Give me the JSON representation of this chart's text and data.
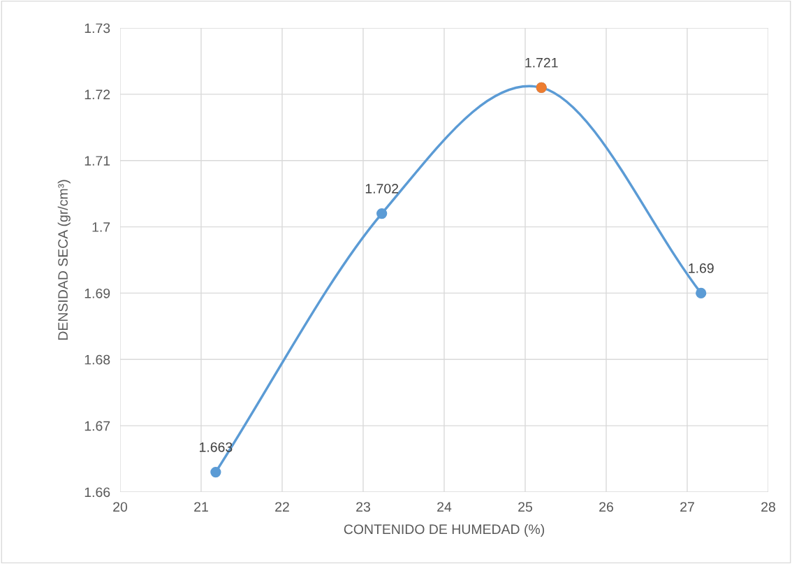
{
  "chart_data": {
    "type": "line",
    "xlabel": "CONTENIDO DE HUMEDAD (%)",
    "ylabel": "DENSIDAD SECA (gr/cm³)",
    "series": [
      {
        "color": "#5b9bd5",
        "x": [
          21.18,
          23.23,
          25.2,
          27.17
        ],
        "values": [
          1.663,
          1.702,
          1.721,
          1.69
        ],
        "marker": "circle",
        "value_labels": [
          "1.663",
          "1.702",
          "1.721",
          "1.69"
        ]
      },
      {
        "type": "scatter",
        "color": "#ed7d31",
        "x": [
          25.2
        ],
        "values": [
          1.721
        ],
        "marker": "circle",
        "value_labels": [
          null
        ]
      }
    ],
    "xlim": [
      20,
      28
    ],
    "xticks": [
      20,
      21,
      22,
      23,
      24,
      25,
      26,
      27,
      28
    ],
    "ylim": [
      1.66,
      1.73
    ],
    "yticks": [
      1.66,
      1.67,
      1.68,
      1.69,
      1.7,
      1.71,
      1.72,
      1.73
    ],
    "grid": true
  }
}
